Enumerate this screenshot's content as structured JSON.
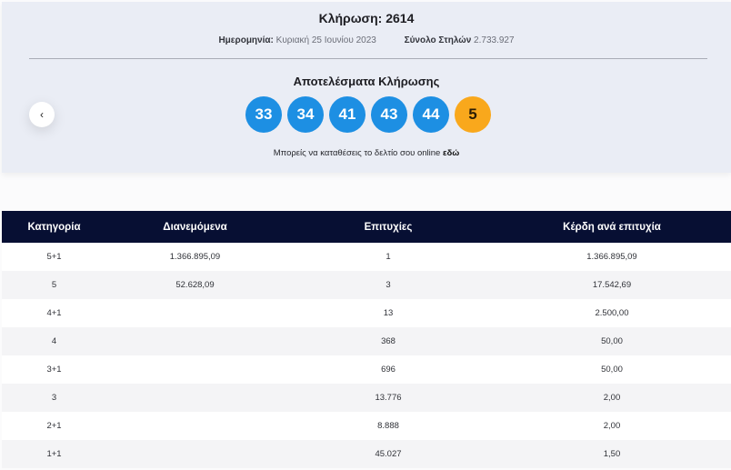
{
  "draw": {
    "title": "Κλήρωση: 2614",
    "date_label": "Ημερομηνία:",
    "date_value": "Κυριακή 25 Ιουνίου 2023",
    "columns_label": "Σύνολο Στηλών",
    "columns_value": "2.733.927",
    "results_title": "Αποτελέσματα Κλήρωσης",
    "numbers": [
      "33",
      "34",
      "41",
      "43",
      "44"
    ],
    "joker": "5",
    "online_text": "Μπορείς να καταθέσεις το δελτίο σου online",
    "online_link": "εδώ",
    "prev_icon": "‹"
  },
  "colors": {
    "ball_blue": "#1d8fe3",
    "joker_orange": "#f9a81c",
    "header_navy": "#070f33",
    "panel_bg": "#eaedf5"
  },
  "table": {
    "headers": [
      "Κατηγορία",
      "Διανεμόμενα",
      "Επιτυχίες",
      "Κέρδη ανά επιτυχία"
    ],
    "rows": [
      {
        "category": "5+1",
        "distributed": "1.366.895,09",
        "winners": "1",
        "prize": "1.366.895,09"
      },
      {
        "category": "5",
        "distributed": "52.628,09",
        "winners": "3",
        "prize": "17.542,69"
      },
      {
        "category": "4+1",
        "distributed": "",
        "winners": "13",
        "prize": "2.500,00"
      },
      {
        "category": "4",
        "distributed": "",
        "winners": "368",
        "prize": "50,00"
      },
      {
        "category": "3+1",
        "distributed": "",
        "winners": "696",
        "prize": "50,00"
      },
      {
        "category": "3",
        "distributed": "",
        "winners": "13.776",
        "prize": "2,00"
      },
      {
        "category": "2+1",
        "distributed": "",
        "winners": "8.888",
        "prize": "2,00"
      },
      {
        "category": "1+1",
        "distributed": "",
        "winners": "45.027",
        "prize": "1,50"
      }
    ]
  }
}
